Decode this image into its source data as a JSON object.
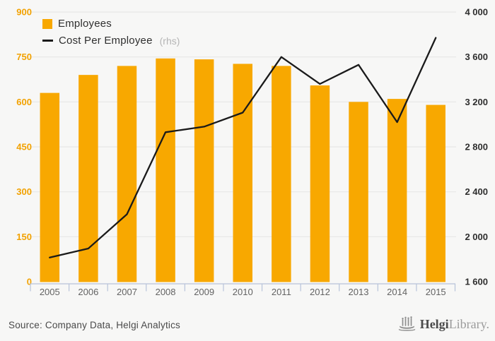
{
  "legend": {
    "rhs_suffix": "(rhs)"
  },
  "footer": {
    "source": "Source: Company Data, Helgi Analytics",
    "logo_bold": "Helgi",
    "logo_light": "Library."
  },
  "colors": {
    "bar": "#F8A800",
    "line": "#1a1a1a",
    "left_axis_labels": "#F2A202",
    "right_axis_labels": "#2e2e2e",
    "year_labels": "#636363",
    "grid": "#e7e7e6",
    "axis": "#b7c3da",
    "background": "#f7f7f6",
    "rhs_note": "#b5b5b5",
    "legend_text": "#2f2f2f"
  },
  "chart_data": {
    "type": "bar+line",
    "title": "",
    "categories": [
      "2005",
      "2006",
      "2007",
      "2008",
      "2009",
      "2010",
      "2011",
      "2012",
      "2013",
      "2014",
      "2015"
    ],
    "series": [
      {
        "name": "Employees",
        "type": "bar",
        "axis": "left",
        "values": [
          630,
          690,
          720,
          745,
          742,
          727,
          720,
          655,
          600,
          610,
          590
        ]
      },
      {
        "name": "Cost Per Employee",
        "type": "line",
        "axis": "right",
        "values": [
          1815,
          1895,
          2200,
          2930,
          2980,
          3105,
          3600,
          3360,
          3530,
          3020,
          3770
        ]
      }
    ],
    "left_axis": {
      "min": 0,
      "max": 900,
      "tick_step": 150,
      "tick_labels": [
        "0",
        "150",
        "300",
        "450",
        "600",
        "750",
        "900"
      ]
    },
    "right_axis": {
      "min": 1600,
      "max": 4000,
      "tick_step": 400,
      "tick_labels": [
        "1 600",
        "2 000",
        "2 400",
        "2 800",
        "3 200",
        "3 600",
        "4 000"
      ]
    },
    "grid": true,
    "legend_position": "top-left"
  }
}
